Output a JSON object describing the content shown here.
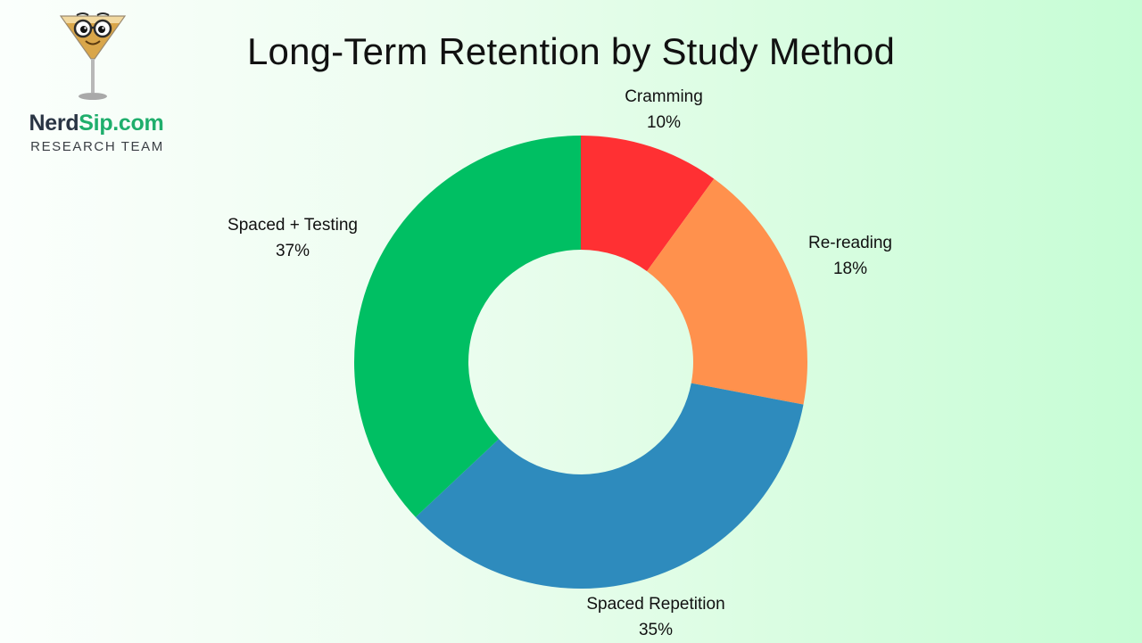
{
  "brand": {
    "name_part1": "Nerd",
    "name_part2": "Sip.com",
    "subtitle": "RESEARCH TEAM",
    "logo_icon": "nerdy-martini-glass-icon",
    "colors": {
      "dark": "#2a3544",
      "green": "#1fae6c"
    }
  },
  "chart_data": {
    "type": "pie",
    "variant": "donut",
    "title": "Long-Term Retention by Study Method",
    "categories": [
      "Cramming",
      "Re-reading",
      "Spaced Repetition",
      "Spaced + Testing"
    ],
    "values": [
      10,
      18,
      35,
      37
    ],
    "unit": "%",
    "colors": [
      "#ff3033",
      "#ff914d",
      "#2e8bbd",
      "#00bf63"
    ],
    "start_angle": "12 o'clock",
    "direction": "clockwise",
    "labels": [
      {
        "name": "Cramming",
        "value": "10%"
      },
      {
        "name": "Re-reading",
        "value": "18%"
      },
      {
        "name": "Spaced Repetition",
        "value": "35%"
      },
      {
        "name": "Spaced + Testing",
        "value": "37%"
      }
    ],
    "legend": "none (outside labels)"
  }
}
